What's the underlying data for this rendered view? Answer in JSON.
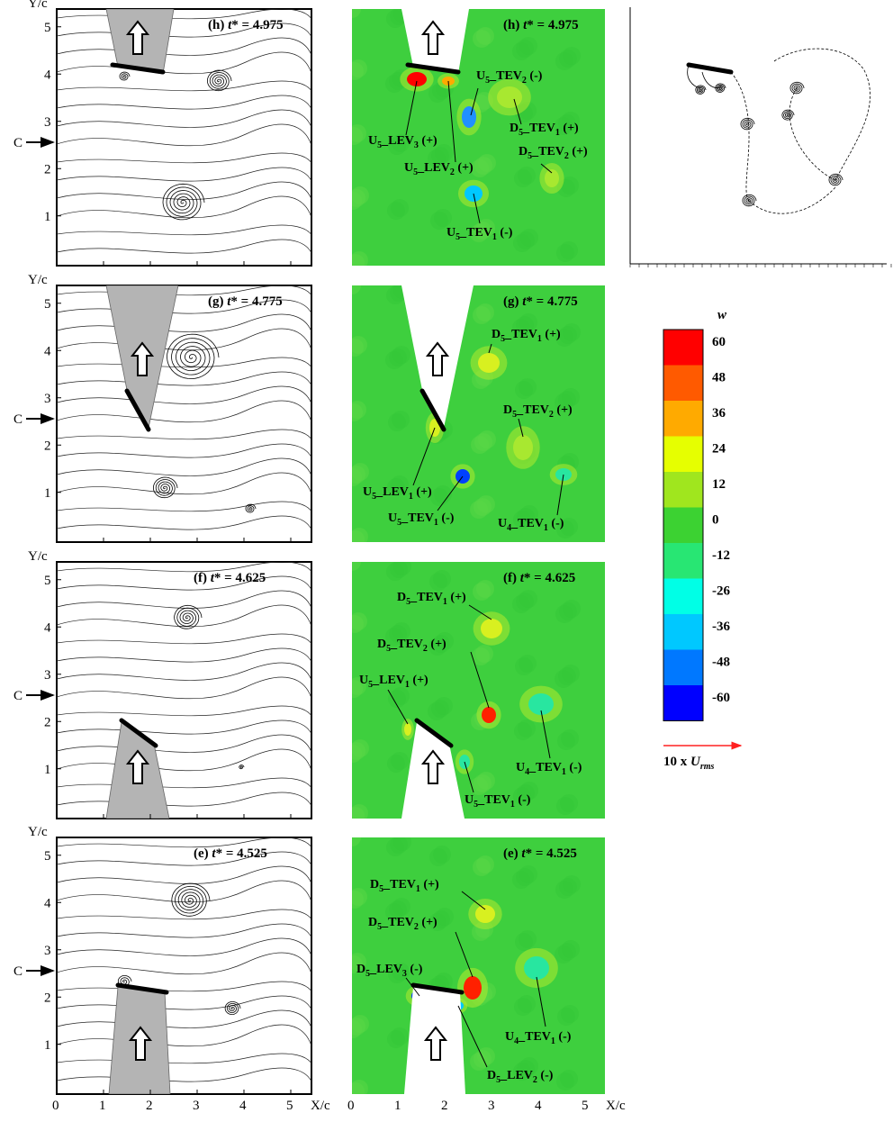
{
  "axes": {
    "x_label": "X/c",
    "y_label": "Y/c",
    "x_ticks": [
      "0",
      "1",
      "2",
      "3",
      "4",
      "5"
    ],
    "y_ticks": [
      "1",
      "2",
      "3",
      "4",
      "5"
    ],
    "c_marker": "C"
  },
  "rows": [
    {
      "label": "(h)",
      "t_value": "4.975",
      "vortices": [
        {
          "name": "U5_LEV3 (+)",
          "main": "U",
          "sub": "5",
          "tail": "_LEV",
          "idx": "3",
          "sign": " (+)"
        },
        {
          "name": "U5_LEV2 (+)",
          "main": "U",
          "sub": "5",
          "tail": "_LEV",
          "idx": "2",
          "sign": " (+)"
        },
        {
          "name": "U5_TEV2 (-)",
          "main": "U",
          "sub": "5",
          "tail": "_TEV",
          "idx": "2",
          "sign": " (-)"
        },
        {
          "name": "D5_TEV1 (+)",
          "main": "D",
          "sub": "5",
          "tail": "_TEV",
          "idx": "1",
          "sign": " (+)"
        },
        {
          "name": "D5_TEV2 (+)",
          "main": "D",
          "sub": "5",
          "tail": "_TEV",
          "idx": "2",
          "sign": " (+)"
        },
        {
          "name": "U5_TEV1 (-)",
          "main": "U",
          "sub": "5",
          "tail": "_TEV",
          "idx": "1",
          "sign": " (-)"
        }
      ]
    },
    {
      "label": "(g)",
      "t_value": "4.775",
      "vortices": [
        {
          "name": "D5_TEV1 (+)",
          "main": "D",
          "sub": "5",
          "tail": "_TEV",
          "idx": "1",
          "sign": " (+)"
        },
        {
          "name": "D5_TEV2 (+)",
          "main": "D",
          "sub": "5",
          "tail": "_TEV",
          "idx": "2",
          "sign": " (+)"
        },
        {
          "name": "U5_LEV1 (+)",
          "main": "U",
          "sub": "5",
          "tail": "_LEV",
          "idx": "1",
          "sign": " (+)"
        },
        {
          "name": "U5_TEV1 (-)",
          "main": "U",
          "sub": "5",
          "tail": "_TEV",
          "idx": "1",
          "sign": " (-)"
        },
        {
          "name": "U4_TEV1 (-)",
          "main": "U",
          "sub": "4",
          "tail": "_TEV",
          "idx": "1",
          "sign": " (-)"
        }
      ]
    },
    {
      "label": "(f)",
      "t_value": "4.625",
      "vortices": [
        {
          "name": "D5_TEV1 (+)",
          "main": "D",
          "sub": "5",
          "tail": "_TEV",
          "idx": "1",
          "sign": " (+)"
        },
        {
          "name": "D5_TEV2 (+)",
          "main": "D",
          "sub": "5",
          "tail": "_TEV",
          "idx": "2",
          "sign": " (+)"
        },
        {
          "name": "U5_LEV1 (+)",
          "main": "U",
          "sub": "5",
          "tail": "_LEV",
          "idx": "1",
          "sign": " (+)"
        },
        {
          "name": "U4_TEV1 (-)",
          "main": "U",
          "sub": "4",
          "tail": "_TEV",
          "idx": "1",
          "sign": " (-)"
        },
        {
          "name": "U5_TEV1 (-)",
          "main": "U",
          "sub": "5",
          "tail": "_TEV",
          "idx": "1",
          "sign": " (-)"
        }
      ]
    },
    {
      "label": "(e)",
      "t_value": "4.525",
      "vortices": [
        {
          "name": "D5_TEV1 (+)",
          "main": "D",
          "sub": "5",
          "tail": "_TEV",
          "idx": "1",
          "sign": " (+)"
        },
        {
          "name": "D5_TEV2 (+)",
          "main": "D",
          "sub": "5",
          "tail": "_TEV",
          "idx": "2",
          "sign": " (+)"
        },
        {
          "name": "D5_LEV3 (-)",
          "main": "D",
          "sub": "5",
          "tail": "_LEV",
          "idx": "3",
          "sign": " (-)"
        },
        {
          "name": "U4_TEV1 (-)",
          "main": "U",
          "sub": "4",
          "tail": "_TEV",
          "idx": "1",
          "sign": " (-)"
        },
        {
          "name": "D5_LEV2 (-)",
          "main": "D",
          "sub": "5",
          "tail": "_LEV",
          "idx": "2",
          "sign": " (-)"
        }
      ]
    }
  ],
  "colorbar": {
    "title": "w",
    "ticks": [
      "60",
      "48",
      "36",
      "24",
      "12",
      "0",
      "-12",
      "-26",
      "-36",
      "-48",
      "-60"
    ],
    "colors": [
      "#ff0000",
      "#ff5a00",
      "#ffaa00",
      "#e6ff00",
      "#a0e61e",
      "#3cd232",
      "#28e673",
      "#00ffe6",
      "#00c8ff",
      "#0078ff",
      "#0000ff"
    ]
  },
  "scale": {
    "text": "10 x ",
    "sym": "U",
    "sub": "rms",
    "color": "#ff2020"
  },
  "colors": {
    "field_bg": "#3ecf3e",
    "wing_gray": "#b4b4b4"
  }
}
